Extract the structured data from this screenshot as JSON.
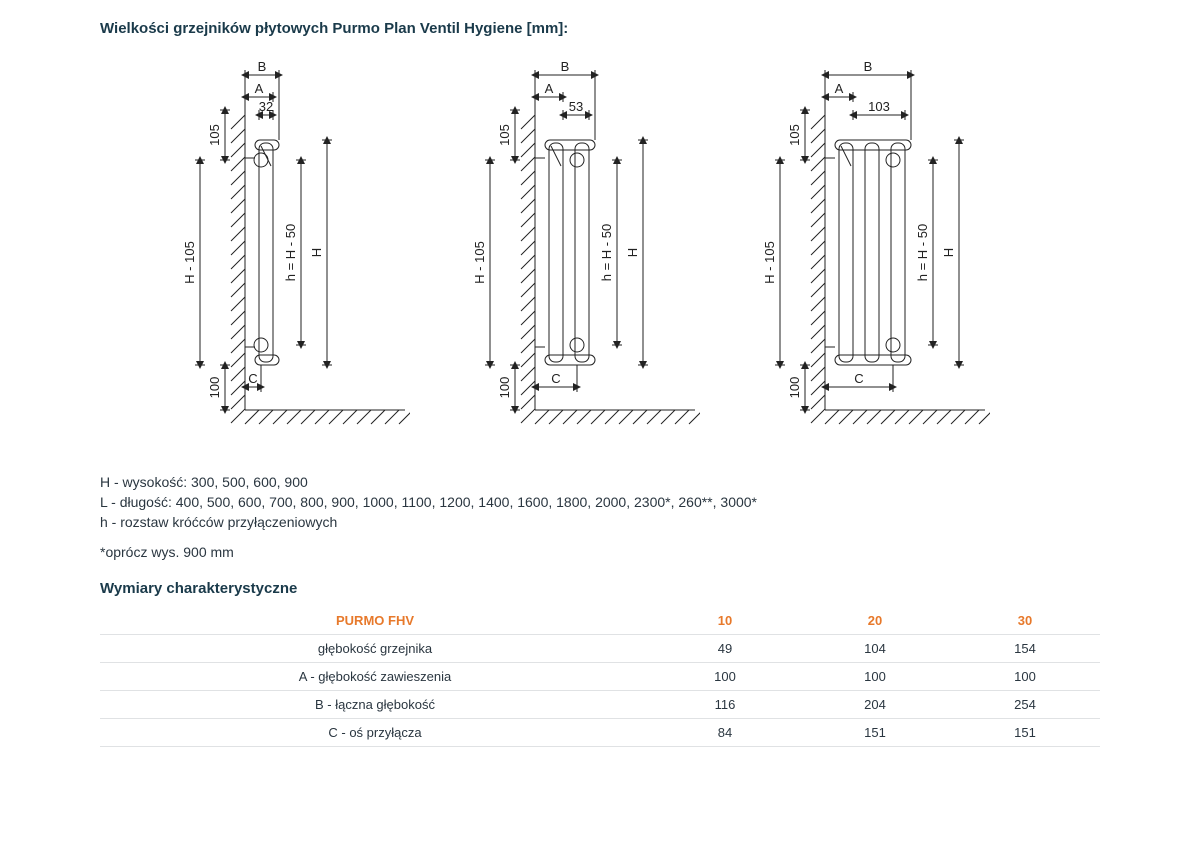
{
  "title": "Wielkości grzejników płytowych Purmo Plan Ventil Hygiene [mm]:",
  "diagrams": {
    "common": {
      "labels": {
        "B": "B",
        "A": "A",
        "C": "C",
        "H": "H",
        "hHm50": "h = H - 50",
        "Hm105": "H - 105",
        "d105": "105",
        "d100": "100"
      }
    },
    "variants": [
      {
        "inner_depth_label": "32",
        "panels": 1
      },
      {
        "inner_depth_label": "53",
        "panels": 2
      },
      {
        "inner_depth_label": "103",
        "panels": 3
      }
    ]
  },
  "description": {
    "line_H": "H - wysokość: 300, 500, 600, 900",
    "line_L": "L - długość: 400, 500, 600, 700, 800, 900, 1000, 1100, 1200, 1400, 1600, 1800, 2000, 2300*, 260**, 3000*",
    "line_h": "h - rozstaw króćców przyłączeniowych",
    "footnote": "*oprócz wys. 900 mm"
  },
  "subtitle": "Wymiary charakterystyczne",
  "table": {
    "header_label": "PURMO FHV",
    "columns": [
      "10",
      "20",
      "30"
    ],
    "rows": [
      {
        "label": "głębokość grzejnika",
        "values": [
          "49",
          "104",
          "154"
        ]
      },
      {
        "label": "A - głębokość zawieszenia",
        "values": [
          "100",
          "100",
          "100"
        ]
      },
      {
        "label": "B - łączna głębokość",
        "values": [
          "116",
          "204",
          "254"
        ]
      },
      {
        "label": "C - oś przyłącza",
        "values": [
          "84",
          "151",
          "151"
        ]
      }
    ]
  },
  "colors": {
    "accent": "#e7792b",
    "text": "#2a3640",
    "border": "#e0e2e4"
  }
}
